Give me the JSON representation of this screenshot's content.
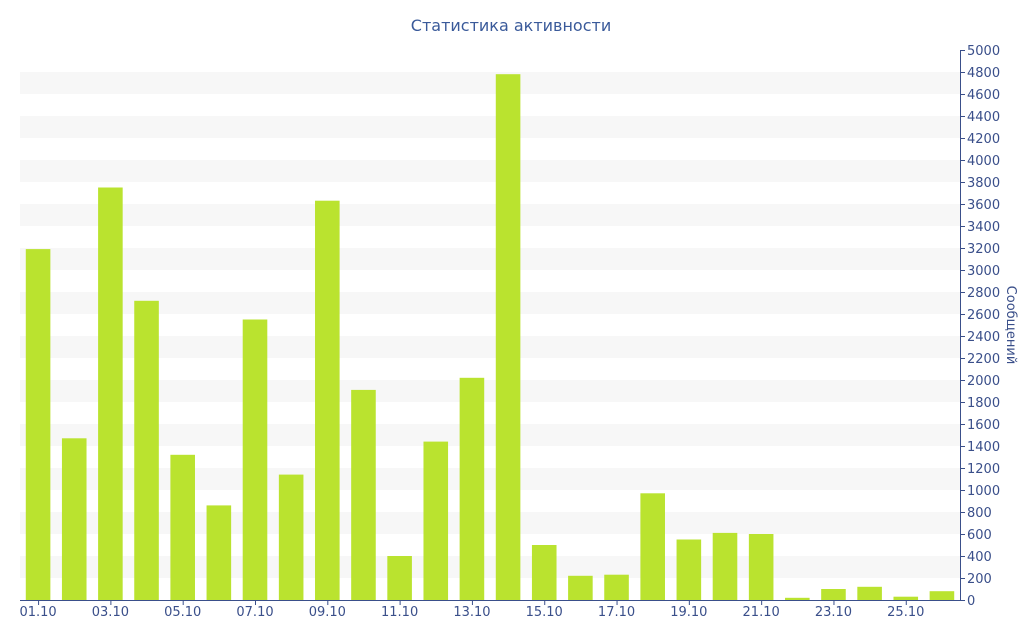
{
  "chart_data": {
    "type": "bar",
    "title": "Статистика активности",
    "ylabel": "Сообщений",
    "xlabel": "",
    "ylim": [
      0,
      5000
    ],
    "y_ticks": [
      0,
      200,
      400,
      600,
      800,
      1000,
      1200,
      1400,
      1600,
      1800,
      2000,
      2200,
      2400,
      2600,
      2800,
      3000,
      3200,
      3400,
      3600,
      3800,
      4000,
      4200,
      4400,
      4600,
      4800,
      5000
    ],
    "y_axis_side": "right",
    "grid": "alternating horizontal bands",
    "categories": [
      "01.10",
      "02.10",
      "03.10",
      "04.10",
      "05.10",
      "06.10",
      "07.10",
      "08.10",
      "09.10",
      "10.10",
      "11.10",
      "12.10",
      "13.10",
      "14.10",
      "15.10",
      "16.10",
      "17.10",
      "18.10",
      "19.10",
      "20.10",
      "21.10",
      "22.10",
      "23.10",
      "24.10",
      "25.10",
      "26.10"
    ],
    "x_tick_labels": [
      "01.10",
      "03.10",
      "05.10",
      "07.10",
      "09.10",
      "11.10",
      "13.10",
      "15.10",
      "17.10",
      "19.10",
      "21.10",
      "23.10",
      "25.10"
    ],
    "values": [
      3190,
      1470,
      3750,
      2720,
      1320,
      860,
      2550,
      1140,
      3630,
      1910,
      400,
      1440,
      2020,
      4780,
      500,
      220,
      230,
      970,
      550,
      610,
      600,
      20,
      100,
      120,
      30,
      80
    ],
    "colors": {
      "bar": "#bae32f",
      "band": "#f7f7f7",
      "axis": "#3a4f8a",
      "text": "#3a4f8a",
      "title": "#3a5a9a"
    }
  }
}
